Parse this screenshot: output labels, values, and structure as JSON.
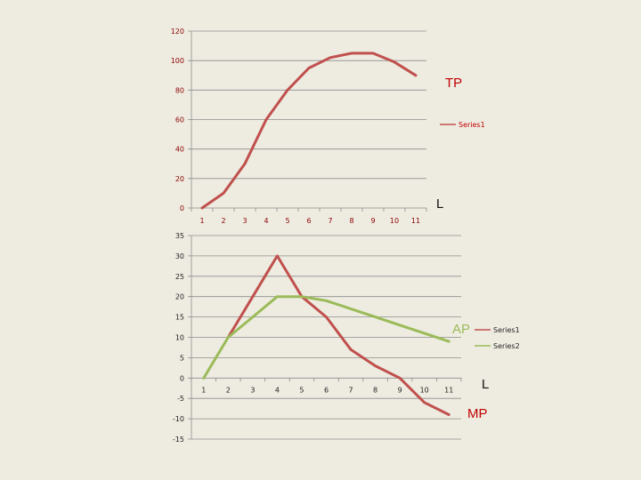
{
  "colors": {
    "background": "#EEECE1",
    "grid": "#8C8C8C",
    "series_red": "#C0504D",
    "series_green": "#9BBB59",
    "label_red": "#C00000",
    "label_green": "#9BBB59",
    "tick_red": "#8B0000",
    "tick_black": "#222222"
  },
  "chart_data": [
    {
      "type": "line",
      "categories": [
        "1",
        "2",
        "3",
        "4",
        "5",
        "6",
        "7",
        "8",
        "9",
        "10",
        "11"
      ],
      "series": [
        {
          "name": "Series1",
          "values": [
            0,
            10,
            30,
            60,
            80,
            95,
            102,
            105,
            105,
            99,
            90
          ]
        }
      ],
      "ylim": [
        0,
        120
      ],
      "yticks": [
        "0",
        "20",
        "40",
        "60",
        "80",
        "100",
        "120"
      ],
      "grid": true,
      "legend": "right",
      "annotations": {
        "curve": "TP",
        "axis": "L"
      }
    },
    {
      "type": "line",
      "categories": [
        "1",
        "2",
        "3",
        "4",
        "5",
        "6",
        "7",
        "8",
        "9",
        "10",
        "11"
      ],
      "series": [
        {
          "name": "Series1",
          "values": [
            null,
            10,
            20,
            30,
            20,
            15,
            7,
            3,
            0,
            -6,
            -9
          ]
        },
        {
          "name": "Series2",
          "values": [
            0,
            10,
            15,
            20,
            20,
            19,
            17,
            15,
            13,
            11,
            9
          ]
        }
      ],
      "ylim": [
        -15,
        35
      ],
      "yticks": [
        "-15",
        "-10",
        "-5",
        "0",
        "5",
        "10",
        "15",
        "20",
        "25",
        "30",
        "35"
      ],
      "grid": true,
      "legend": "right",
      "annotations": {
        "green_curve": "AP",
        "red_curve": "MP",
        "axis": "L"
      }
    }
  ]
}
